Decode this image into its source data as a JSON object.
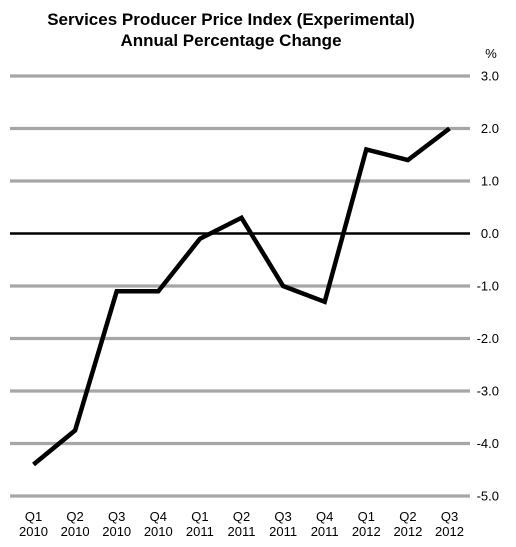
{
  "chart_data": {
    "type": "line",
    "title": "Services Producer Price Index (Experimental)",
    "subtitle": "Annual Percentage Change",
    "y_unit": "%",
    "xlabel": "",
    "ylabel": "",
    "categories": [
      [
        "Q1",
        "2010"
      ],
      [
        "Q2",
        "2010"
      ],
      [
        "Q3",
        "2010"
      ],
      [
        "Q4",
        "2010"
      ],
      [
        "Q1",
        "2011"
      ],
      [
        "Q2",
        "2011"
      ],
      [
        "Q3",
        "2011"
      ],
      [
        "Q4",
        "2011"
      ],
      [
        "Q1",
        "2012"
      ],
      [
        "Q2",
        "2012"
      ],
      [
        "Q3",
        "2012"
      ]
    ],
    "series": [
      {
        "values": [
          -4.4,
          -3.75,
          -1.1,
          -1.1,
          -0.1,
          0.3,
          -1.0,
          -1.3,
          1.6,
          1.4,
          2.0
        ]
      }
    ],
    "ylim": [
      -5.0,
      3.0
    ],
    "yticks": [
      "3.0",
      "2.0",
      "1.0",
      "0.0",
      "-1.0",
      "-2.0",
      "-3.0",
      "-4.0",
      "-5.0"
    ],
    "y_axis_side": "right",
    "grid": true,
    "legend": "none",
    "colors": {
      "line": "#000000",
      "grid": "#a6a6a6",
      "zero_line": "#000000"
    }
  }
}
